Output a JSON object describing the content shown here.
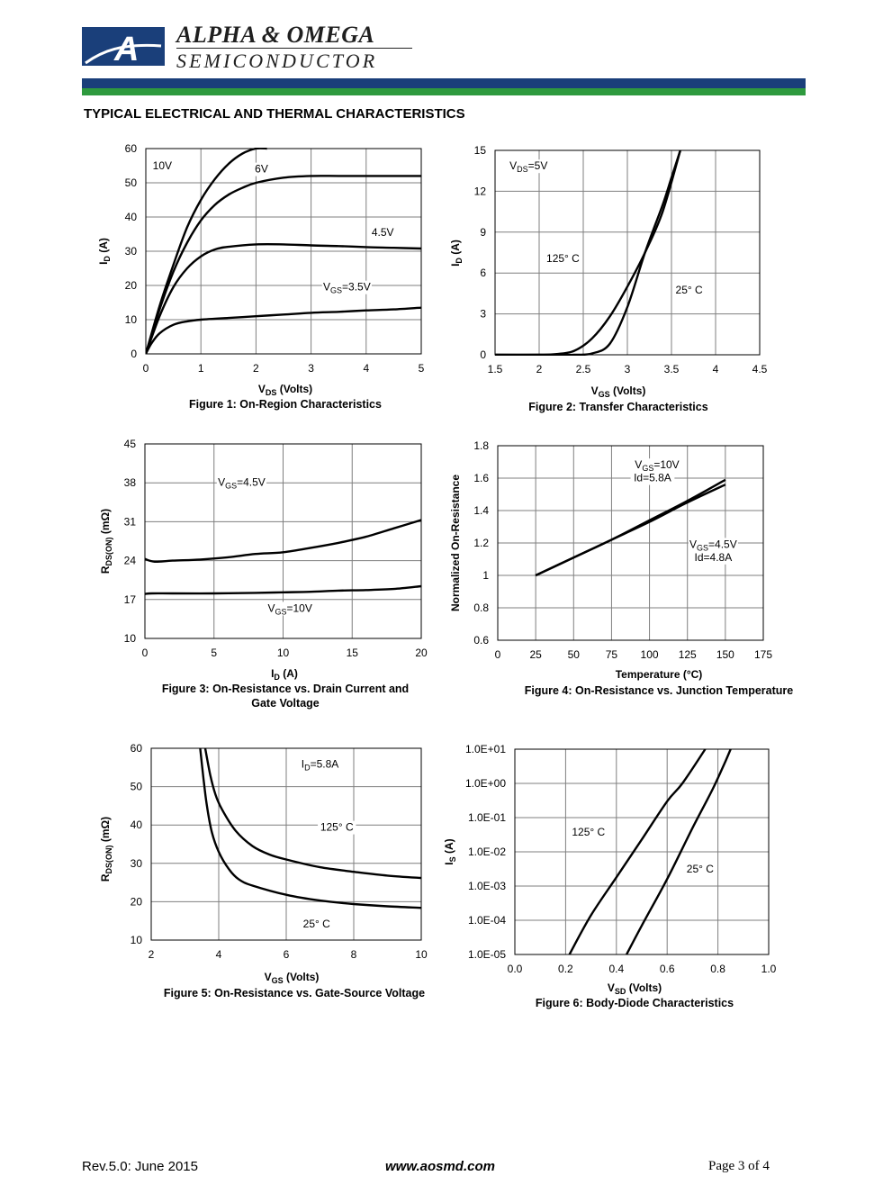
{
  "header": {
    "company_line1": "ALPHA & OMEGA",
    "company_line2": "SEMICONDUCTOR",
    "brand_blue": "#1a3f7a",
    "brand_green": "#2e9a3e",
    "logo_letter": "A"
  },
  "section_title": "TYPICAL ELECTRICAL AND THERMAL CHARACTERISTICS",
  "footer": {
    "revision": "Rev.5.0: June 2015",
    "website": "www.aosmd.com",
    "page": "Page 3 of 4"
  },
  "chart_data": [
    {
      "type": "line",
      "caption": "Figure 1: On-Region Characteristics",
      "xlabel": "V_DS (Volts)",
      "ylabel": "I_D (A)",
      "xlim": [
        0,
        5
      ],
      "ylim": [
        0,
        60
      ],
      "xticks": [
        "0",
        "1",
        "2",
        "3",
        "4",
        "5"
      ],
      "yticks": [
        "0",
        "10",
        "20",
        "30",
        "40",
        "50",
        "60"
      ],
      "grid": true,
      "annotations": [
        {
          "text": "10V",
          "x": 0.3,
          "y": 54
        },
        {
          "text": "6V",
          "x": 2.1,
          "y": 53
        },
        {
          "text": "4.5V",
          "x": 4.3,
          "y": 34.5
        },
        {
          "text": "V_GS=3.5V",
          "x": 3.65,
          "y": 18.5
        }
      ],
      "series": [
        {
          "name": "10V",
          "x": [
            0,
            0.25,
            0.5,
            0.75,
            1,
            1.25,
            1.5,
            1.75,
            2,
            2.2
          ],
          "y": [
            0,
            14,
            26,
            37,
            45,
            51,
            55.5,
            58.5,
            60,
            60
          ]
        },
        {
          "name": "6V",
          "x": [
            0,
            0.25,
            0.5,
            0.75,
            1,
            1.25,
            1.5,
            1.75,
            2,
            2.5,
            3,
            3.5,
            4,
            4.5,
            5
          ],
          "y": [
            0,
            13,
            24,
            32.5,
            39,
            43.5,
            46.5,
            48.5,
            50,
            51.5,
            52,
            52,
            52,
            52,
            52
          ]
        },
        {
          "name": "4.5V",
          "x": [
            0,
            0.25,
            0.5,
            0.75,
            1,
            1.25,
            1.5,
            2,
            2.5,
            3,
            3.5,
            4,
            4.5,
            5
          ],
          "y": [
            0,
            11,
            19.5,
            25,
            28.5,
            30.5,
            31.3,
            32,
            32,
            31.7,
            31.5,
            31.2,
            31,
            30.8
          ]
        },
        {
          "name": "V_GS=3.5V",
          "x": [
            0,
            0.1,
            0.25,
            0.5,
            0.75,
            1,
            1.5,
            2,
            2.5,
            3,
            3.5,
            4,
            4.5,
            5
          ],
          "y": [
            0,
            3,
            6,
            8.5,
            9.5,
            10,
            10.5,
            11,
            11.5,
            12,
            12.3,
            12.7,
            13,
            13.5
          ]
        }
      ]
    },
    {
      "type": "line",
      "caption": "Figure 2: Transfer Characteristics",
      "xlabel": "V_GS (Volts)",
      "ylabel": "I_D (A)",
      "xlim": [
        1.5,
        4.5
      ],
      "ylim": [
        0,
        15
      ],
      "xticks": [
        "1.5",
        "2",
        "2.5",
        "3",
        "3.5",
        "4",
        "4.5"
      ],
      "yticks": [
        "0",
        "3",
        "6",
        "9",
        "12",
        "15"
      ],
      "grid": true,
      "annotations": [
        {
          "text": "V_DS=5V",
          "x": 1.88,
          "y": 13.6
        },
        {
          "text": "125° C",
          "x": 2.27,
          "y": 6.8
        },
        {
          "text": "25° C",
          "x": 3.7,
          "y": 4.5
        }
      ],
      "series": [
        {
          "name": "125° C",
          "x": [
            1.5,
            2,
            2.2,
            2.4,
            2.6,
            2.8,
            3,
            3.2,
            3.4,
            3.6
          ],
          "y": [
            0,
            0,
            0.05,
            0.3,
            1.2,
            2.8,
            5,
            7.5,
            10.5,
            15
          ]
        },
        {
          "name": "25° C",
          "x": [
            1.5,
            2,
            2.4,
            2.6,
            2.8,
            3,
            3.2,
            3.4,
            3.5,
            3.6
          ],
          "y": [
            0,
            0,
            0,
            0.1,
            0.8,
            3.5,
            7.5,
            11,
            13,
            15
          ]
        }
      ]
    },
    {
      "type": "line",
      "caption": "Figure 3: On-Resistance vs. Drain Current and Gate Voltage",
      "caption_lines": [
        "Figure 3: On-Resistance vs. Drain Current and",
        "Gate Voltage"
      ],
      "xlabel": "I_D (A)",
      "ylabel": "R_DS(ON) (mΩ)",
      "xlim": [
        0,
        20
      ],
      "ylim": [
        10,
        45
      ],
      "xticks": [
        "0",
        "5",
        "10",
        "15",
        "20"
      ],
      "yticks": [
        "10",
        "17",
        "24",
        "31",
        "38",
        "45"
      ],
      "grid": true,
      "annotations": [
        {
          "text": "V_GS=4.5V",
          "x": 7,
          "y": 37.5
        },
        {
          "text": "V_GS=10V",
          "x": 10.5,
          "y": 14.8
        }
      ],
      "series": [
        {
          "name": "V_GS=4.5V",
          "x": [
            0,
            0.7,
            2,
            4,
            6,
            8,
            10,
            12,
            14,
            16,
            18,
            20
          ],
          "y": [
            24.3,
            23.8,
            24,
            24.2,
            24.6,
            25.2,
            25.5,
            26.3,
            27.2,
            28.3,
            29.8,
            31.3
          ]
        },
        {
          "name": "V_GS=10V",
          "x": [
            0,
            0.5,
            2,
            5,
            8,
            10,
            12,
            14,
            16,
            18,
            20
          ],
          "y": [
            18,
            18.1,
            18.1,
            18.1,
            18.2,
            18.3,
            18.4,
            18.6,
            18.7,
            18.9,
            19.4
          ]
        }
      ]
    },
    {
      "type": "line",
      "caption": "Figure 4: On-Resistance vs. Junction Temperature",
      "xlabel": "Temperature (°C)",
      "ylabel": "Normalized On-Resistance",
      "xlim": [
        0,
        175
      ],
      "ylim": [
        0.6,
        1.8
      ],
      "xticks": [
        "0",
        "25",
        "50",
        "75",
        "100",
        "125",
        "150",
        "175"
      ],
      "yticks": [
        "0.6",
        "0.8",
        "1",
        "1.2",
        "1.4",
        "1.6",
        "1.8"
      ],
      "grid": true,
      "annotations": [
        {
          "text": "V_GS=10V",
          "x": 105,
          "y": 1.66
        },
        {
          "text": "Id=5.8A",
          "x": 102,
          "y": 1.58
        },
        {
          "text": "V_GS=4.5V",
          "x": 142,
          "y": 1.17
        },
        {
          "text": "Id=4.8A",
          "x": 142,
          "y": 1.09
        }
      ],
      "series": [
        {
          "name": "V_GS=10V",
          "x": [
            25,
            50,
            75,
            100,
            125,
            150
          ],
          "y": [
            1.0,
            1.11,
            1.22,
            1.34,
            1.46,
            1.59
          ]
        },
        {
          "name": "V_GS=4.5V",
          "x": [
            25,
            50,
            75,
            100,
            125,
            150
          ],
          "y": [
            1.0,
            1.11,
            1.22,
            1.33,
            1.45,
            1.56
          ]
        }
      ]
    },
    {
      "type": "line",
      "caption": "Figure 5: On-Resistance vs. Gate-Source Voltage",
      "xlabel": "V_GS (Volts)",
      "ylabel": "R_DS(ON) (mΩ)",
      "xlim": [
        2,
        10
      ],
      "ylim": [
        10,
        60
      ],
      "xticks": [
        "2",
        "4",
        "6",
        "8",
        "10"
      ],
      "yticks": [
        "10",
        "20",
        "30",
        "40",
        "50",
        "60"
      ],
      "grid": true,
      "annotations": [
        {
          "text": "I_D=5.8A",
          "x": 7,
          "y": 55
        },
        {
          "text": "125° C",
          "x": 7.5,
          "y": 38.5
        },
        {
          "text": "25° C",
          "x": 6.9,
          "y": 13.3
        }
      ],
      "series": [
        {
          "name": "125° C",
          "x": [
            3.6,
            3.75,
            3.9,
            4.1,
            4.5,
            5,
            5.5,
            6,
            7,
            8,
            9,
            10
          ],
          "y": [
            60,
            53,
            48,
            44,
            38.5,
            34.5,
            32.3,
            31,
            29,
            27.8,
            26.8,
            26.2
          ]
        },
        {
          "name": "25° C",
          "x": [
            3.45,
            3.55,
            3.65,
            3.8,
            4,
            4.3,
            4.6,
            5,
            6,
            7,
            8,
            9,
            10
          ],
          "y": [
            60,
            52,
            45,
            38,
            33,
            28.5,
            25.8,
            24.2,
            21.8,
            20.3,
            19.4,
            18.8,
            18.4
          ]
        }
      ]
    },
    {
      "type": "line",
      "caption": "Figure 6: Body-Diode Characteristics",
      "xlabel": "V_SD (Volts)",
      "ylabel": "I_S (A)",
      "yscale": "log",
      "xlim": [
        0,
        1.0
      ],
      "ylim": [
        1e-05,
        10
      ],
      "xticks": [
        "0.0",
        "0.2",
        "0.4",
        "0.6",
        "0.8",
        "1.0"
      ],
      "yticks": [
        "1.0E-05",
        "1.0E-04",
        "1.0E-03",
        "1.0E-02",
        "1.0E-01",
        "1.0E+00",
        "1.0E+01"
      ],
      "grid": true,
      "annotations": [
        {
          "text": "125° C",
          "x": 0.29,
          "y": 0.03
        },
        {
          "text": "25° C",
          "x": 0.73,
          "y": 0.0025
        }
      ],
      "series": [
        {
          "name": "125° C",
          "x": [
            0.215,
            0.3,
            0.4,
            0.5,
            0.6,
            0.66,
            0.75
          ],
          "y": [
            1e-05,
            0.00014,
            0.0018,
            0.023,
            0.3,
            1,
            10
          ]
        },
        {
          "name": "25° C",
          "x": [
            0.44,
            0.5,
            0.6,
            0.7,
            0.78,
            0.83,
            0.85
          ],
          "y": [
            1e-05,
            7e-05,
            0.0016,
            0.05,
            0.7,
            4.5,
            10
          ]
        }
      ]
    }
  ]
}
